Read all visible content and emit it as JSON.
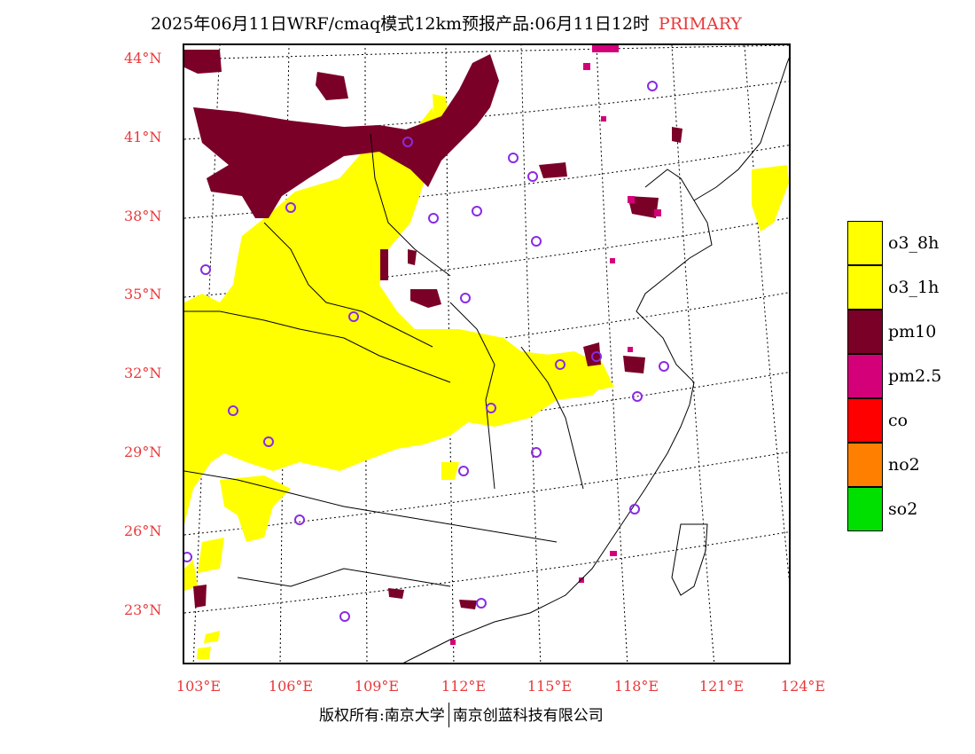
{
  "title": {
    "main": "2025年06月11日WRF/cmaq模式12km预报产品:06月11日12时",
    "tag": "PRIMARY"
  },
  "colors": {
    "o3": "#ffff00",
    "pm10": "#7a0028",
    "pm25": "#d4007a",
    "co": "#ff0000",
    "no2": "#ff8000",
    "so2": "#00e000",
    "label": "#e8383a",
    "station": "#8a2be2"
  },
  "lat_labels": [
    "44°N",
    "41°N",
    "38°N",
    "35°N",
    "32°N",
    "29°N",
    "26°N",
    "23°N"
  ],
  "lon_labels": [
    "103°E",
    "106°E",
    "109°E",
    "112°E",
    "115°E",
    "118°E",
    "121°E",
    "124°E"
  ],
  "legend": [
    {
      "label": "o3_8h",
      "color": "#ffff00"
    },
    {
      "label": "o3_1h",
      "color": "#ffff00"
    },
    {
      "label": "pm10",
      "color": "#7a0028"
    },
    {
      "label": "pm2.5",
      "color": "#d4007a"
    },
    {
      "label": "co",
      "color": "#ff0000"
    },
    {
      "label": "no2",
      "color": "#ff8000"
    },
    {
      "label": "so2",
      "color": "#00e000"
    }
  ],
  "footer": {
    "left": "版权所有:南京大学",
    "right": "南京创蓝科技有限公司"
  }
}
